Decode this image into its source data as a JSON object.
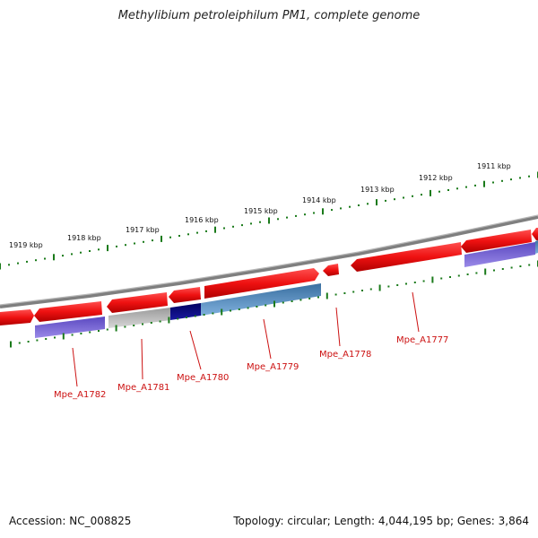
{
  "title": "Methylibium petroleiphilum PM1, complete genome",
  "scale_labels": [
    "1919 kbp",
    "1918 kbp",
    "1917 kbp",
    "1916 kbp",
    "1915 kbp",
    "1914 kbp",
    "1913 kbp",
    "1912 kbp",
    "1911 kbp"
  ],
  "genes": [
    {
      "id": "Mpe_A1782"
    },
    {
      "id": "Mpe_A1781"
    },
    {
      "id": "Mpe_A1780"
    },
    {
      "id": "Mpe_A1779"
    },
    {
      "id": "Mpe_A1778"
    },
    {
      "id": "Mpe_A1777"
    }
  ],
  "colors": {
    "feature_red": "#ee1111",
    "purple": "#6a5acd",
    "gray": "#b0b0b0",
    "navy": "#0a0a80",
    "steel_blue": "#4682b4",
    "backbone": "#7f7f7f",
    "ticks": "#1a7a1a",
    "labels": "#cc1111"
  },
  "footer": {
    "accession": "Accession: NC_008825",
    "topology": "Topology: circular; Length: 4,044,195 bp; Genes: 3,864"
  }
}
